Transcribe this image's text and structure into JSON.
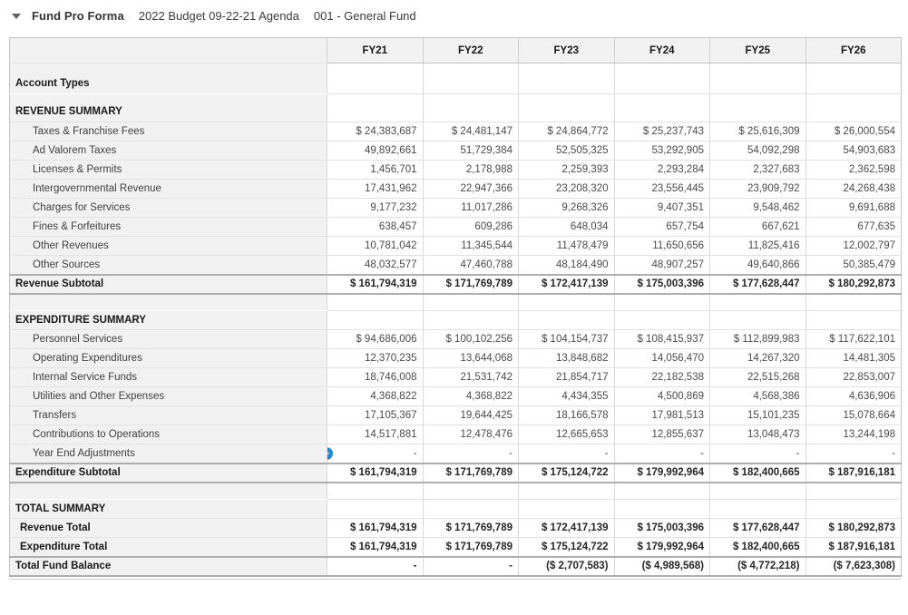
{
  "header": {
    "collapse_icon": "caret-down",
    "title": "Fund Pro Forma",
    "budget_name": "2022 Budget 09-22-21 Agenda",
    "fund_name": "001 - General Fund"
  },
  "colors": {
    "accent_blue": "#2589d4",
    "label_column_bg": "#f1f1f1",
    "thick_rule_gray": "#aeaeae"
  },
  "table": {
    "columns": [
      "FY21",
      "FY22",
      "FY23",
      "FY24",
      "FY25",
      "FY26"
    ],
    "rows": [
      {
        "type": "account-types",
        "label": "Account Types",
        "values": null
      },
      {
        "type": "section-tall",
        "label": "REVENUE SUMMARY",
        "values": null
      },
      {
        "type": "item",
        "label": "Taxes & Franchise Fees",
        "values": [
          "$ 24,383,687",
          "$ 24,481,147",
          "$ 24,864,772",
          "$ 25,237,743",
          "$ 25,616,309",
          "$ 26,000,554"
        ]
      },
      {
        "type": "item",
        "label": "Ad Valorem Taxes",
        "values": [
          "49,892,661",
          "51,729,384",
          "52,505,325",
          "53,292,905",
          "54,092,298",
          "54,903,683"
        ]
      },
      {
        "type": "item",
        "label": "Licenses & Permits",
        "values": [
          "1,456,701",
          "2,178,988",
          "2,259,393",
          "2,293,284",
          "2,327,683",
          "2,362,598"
        ]
      },
      {
        "type": "item",
        "label": "Intergovernmental Revenue",
        "values": [
          "17,431,962",
          "22,947,366",
          "23,208,320",
          "23,556,445",
          "23,909,792",
          "24,268,438"
        ]
      },
      {
        "type": "item",
        "label": "Charges for Services",
        "values": [
          "9,177,232",
          "11,017,286",
          "9,268,326",
          "9,407,351",
          "9,548,462",
          "9,691,688"
        ]
      },
      {
        "type": "item",
        "label": "Fines & Forfeitures",
        "values": [
          "638,457",
          "609,286",
          "648,034",
          "657,754",
          "667,621",
          "677,635"
        ]
      },
      {
        "type": "item",
        "label": "Other Revenues",
        "values": [
          "10,781,042",
          "11,345,544",
          "11,478,479",
          "11,650,656",
          "11,825,416",
          "12,002,797"
        ]
      },
      {
        "type": "item",
        "label": "Other Sources",
        "values": [
          "48,032,577",
          "47,460,788",
          "48,184,490",
          "48,907,257",
          "49,640,866",
          "50,385,479"
        ]
      },
      {
        "type": "subtotal",
        "label": "Revenue Subtotal",
        "values": [
          "$ 161,794,319",
          "$ 171,769,789",
          "$ 172,417,139",
          "$ 175,003,396",
          "$ 177,628,447",
          "$ 180,292,873"
        ]
      },
      {
        "type": "blank",
        "label": "",
        "values": null
      },
      {
        "type": "section",
        "label": "EXPENDITURE SUMMARY",
        "values": null
      },
      {
        "type": "item",
        "label": "Personnel Services",
        "values": [
          "$ 94,686,006",
          "$ 100,102,256",
          "$ 104,154,737",
          "$ 108,415,937",
          "$ 112,899,983",
          "$ 117,622,101"
        ]
      },
      {
        "type": "item",
        "label": "Operating Expenditures",
        "values": [
          "12,370,235",
          "13,644,068",
          "13,848,682",
          "14,056,470",
          "14,267,320",
          "14,481,305"
        ]
      },
      {
        "type": "item",
        "label": "Internal Service Funds",
        "values": [
          "18,746,008",
          "21,531,742",
          "21,854,717",
          "22,182,538",
          "22,515,268",
          "22,853,007"
        ]
      },
      {
        "type": "item",
        "label": "Utilities and Other Expenses",
        "values": [
          "4,368,822",
          "4,368,822",
          "4,434,355",
          "4,500,869",
          "4,568,386",
          "4,636,906"
        ]
      },
      {
        "type": "item",
        "label": "Transfers",
        "values": [
          "17,105,367",
          "19,644,425",
          "18,166,578",
          "17,981,513",
          "15,101,235",
          "15,078,664"
        ]
      },
      {
        "type": "item",
        "label": "Contributions to Operations",
        "values": [
          "14,517,881",
          "12,478,476",
          "12,665,653",
          "12,855,637",
          "13,048,473",
          "13,244,198"
        ]
      },
      {
        "type": "item",
        "label": "Year End Adjustments",
        "icon": "dropdown-circle",
        "values": [
          "-",
          "-",
          "-",
          "-",
          "-",
          "-"
        ]
      },
      {
        "type": "subtotal",
        "label": "Expenditure Subtotal",
        "values": [
          "$ 161,794,319",
          "$ 171,769,789",
          "$ 175,124,722",
          "$ 179,992,964",
          "$ 182,400,665",
          "$ 187,916,181"
        ]
      },
      {
        "type": "blank",
        "label": "",
        "values": null
      },
      {
        "type": "section",
        "label": "TOTAL SUMMARY",
        "values": null
      },
      {
        "type": "total-item",
        "label": "Revenue Total",
        "values": [
          "$ 161,794,319",
          "$ 171,769,789",
          "$ 172,417,139",
          "$ 175,003,396",
          "$ 177,628,447",
          "$ 180,292,873"
        ]
      },
      {
        "type": "total-item",
        "label": "Expenditure Total",
        "values": [
          "$ 161,794,319",
          "$ 171,769,789",
          "$ 175,124,722",
          "$ 179,992,964",
          "$ 182,400,665",
          "$ 187,916,181"
        ]
      },
      {
        "type": "grand",
        "label": "Total Fund Balance",
        "values": [
          "-",
          "-",
          "($ 2,707,583)",
          "($ 4,989,568)",
          "($ 4,772,218)",
          "($ 7,623,308)"
        ]
      }
    ]
  }
}
